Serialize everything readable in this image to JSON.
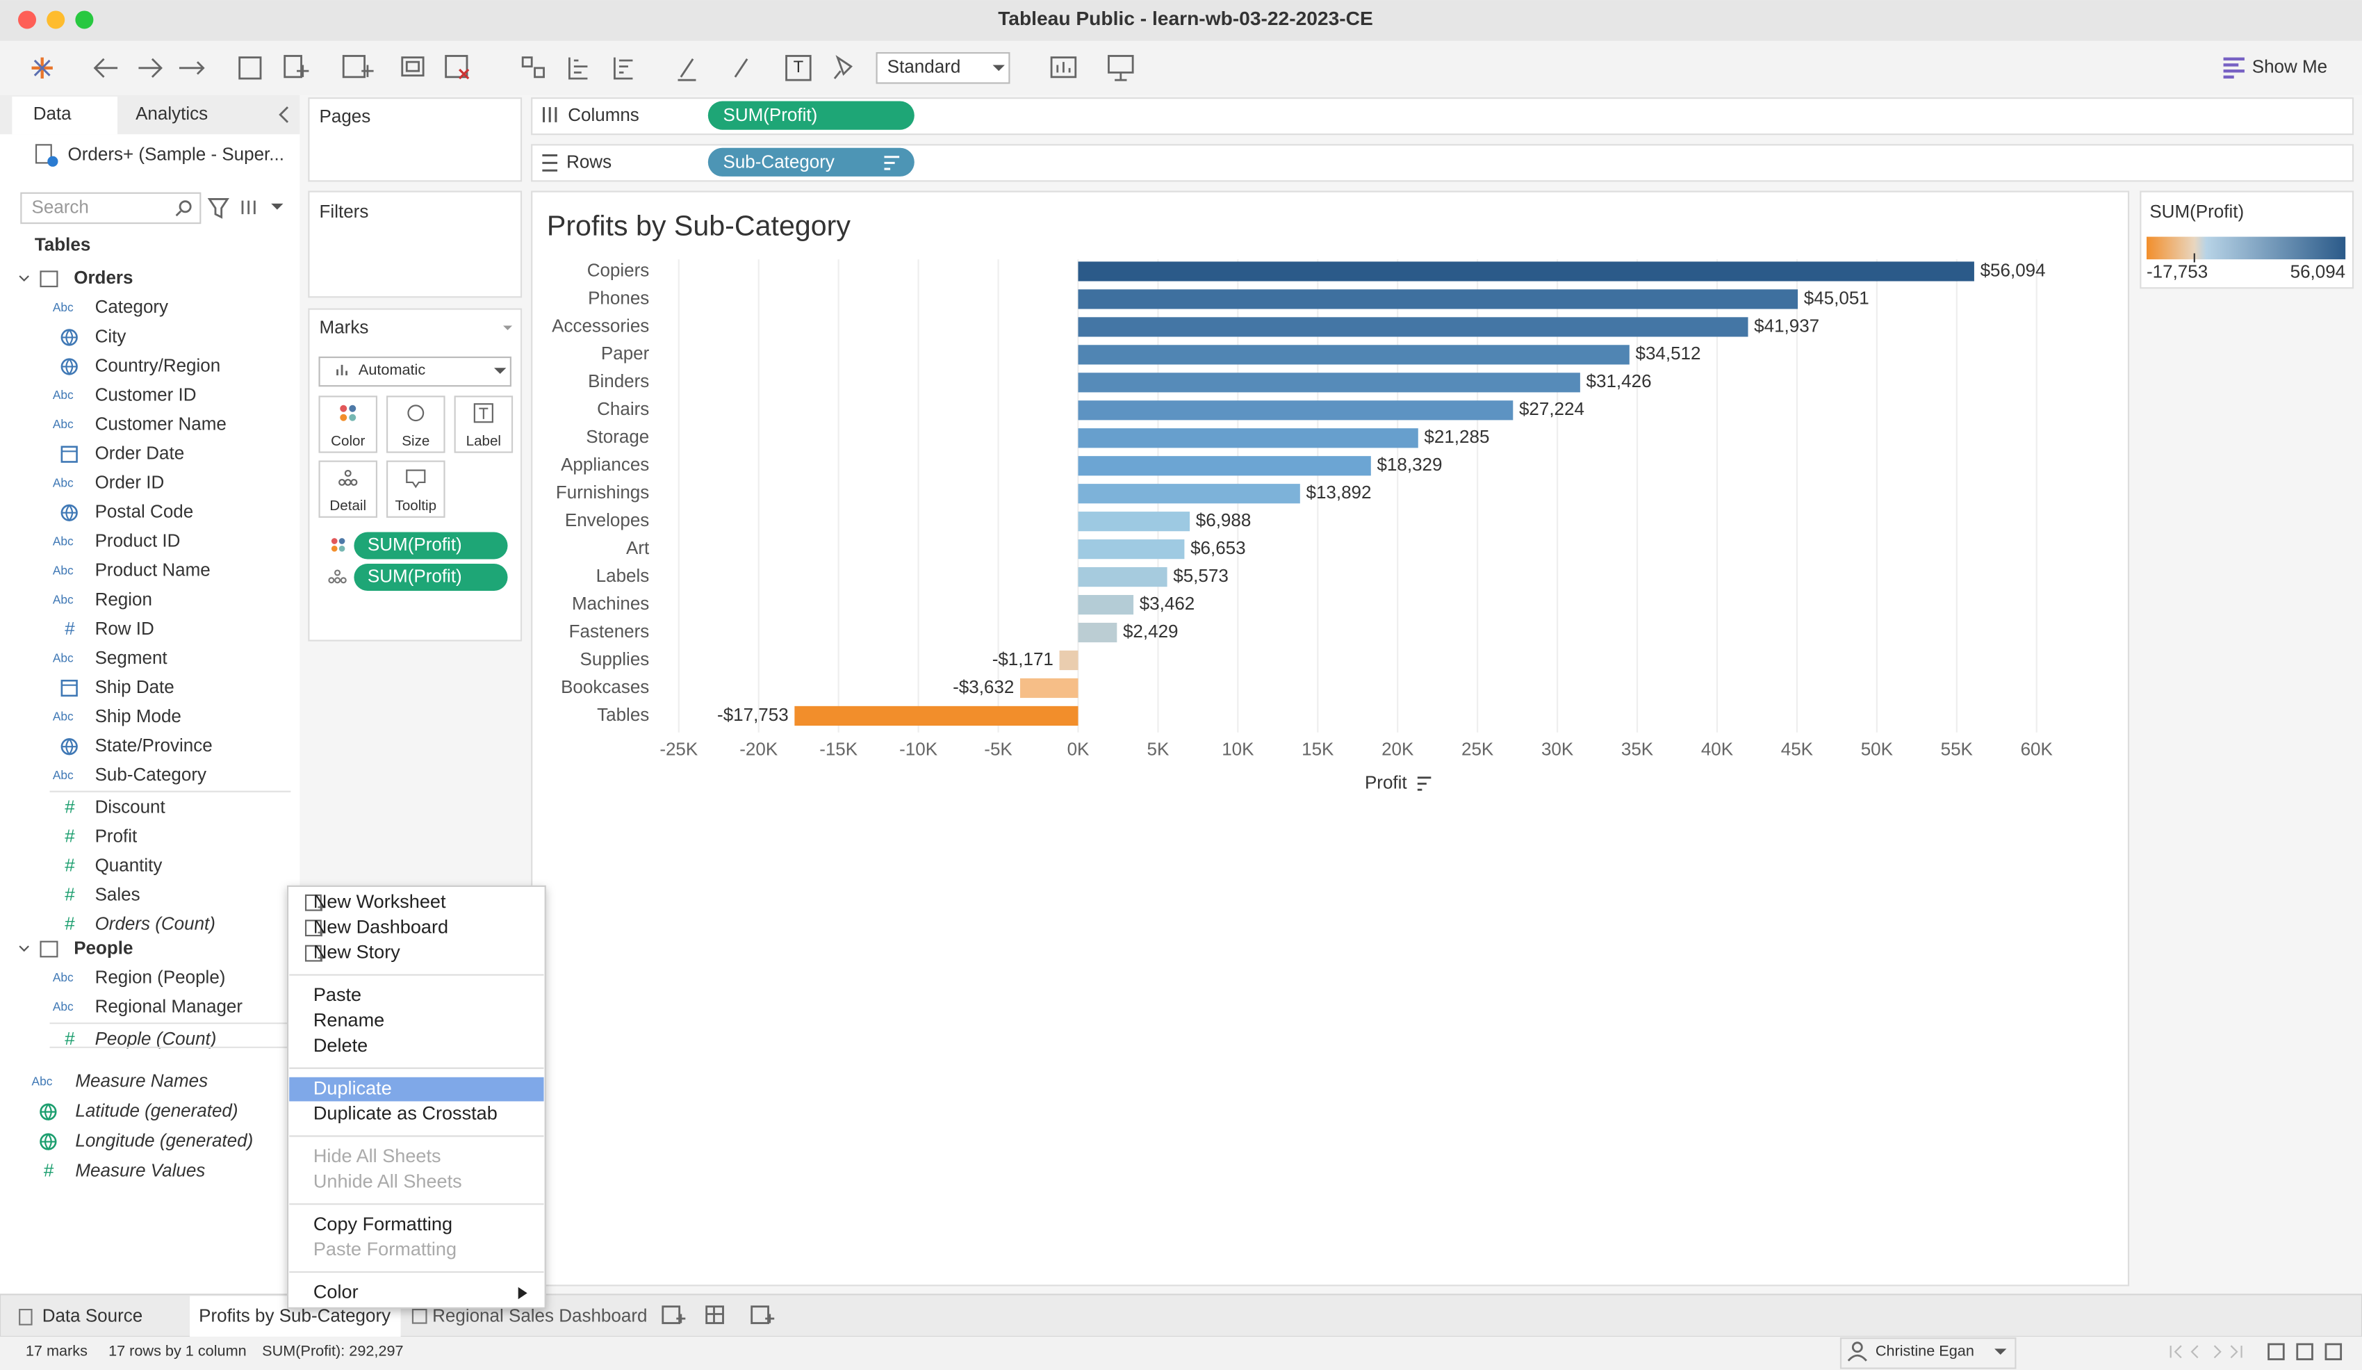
{
  "window": {
    "title": "Tableau Public - learn-wb-03-22-2023-CE"
  },
  "toolbar": {
    "fit": "Standard",
    "show_me": "Show Me"
  },
  "data_pane": {
    "tabs": [
      "Data",
      "Analytics"
    ],
    "source": "Orders+ (Sample - Super...",
    "search_placeholder": "Search",
    "tables_heading": "Tables",
    "tables": [
      {
        "name": "Orders",
        "fields": [
          {
            "name": "Category",
            "icon": "Abc",
            "role": "dimension"
          },
          {
            "name": "City",
            "icon": "globe",
            "role": "dimension"
          },
          {
            "name": "Country/Region",
            "icon": "globe",
            "role": "dimension"
          },
          {
            "name": "Customer ID",
            "icon": "Abc",
            "role": "dimension"
          },
          {
            "name": "Customer Name",
            "icon": "Abc",
            "role": "dimension"
          },
          {
            "name": "Order Date",
            "icon": "date",
            "role": "dimension"
          },
          {
            "name": "Order ID",
            "icon": "Abc",
            "role": "dimension"
          },
          {
            "name": "Postal Code",
            "icon": "globe",
            "role": "dimension"
          },
          {
            "name": "Product ID",
            "icon": "Abc",
            "role": "dimension"
          },
          {
            "name": "Product Name",
            "icon": "Abc",
            "role": "dimension"
          },
          {
            "name": "Region",
            "icon": "Abc",
            "role": "dimension"
          },
          {
            "name": "Row ID",
            "icon": "#",
            "role": "dimension"
          },
          {
            "name": "Segment",
            "icon": "Abc",
            "role": "dimension"
          },
          {
            "name": "Ship Date",
            "icon": "date",
            "role": "dimension"
          },
          {
            "name": "Ship Mode",
            "icon": "Abc",
            "role": "dimension"
          },
          {
            "name": "State/Province",
            "icon": "globe",
            "role": "dimension"
          },
          {
            "name": "Sub-Category",
            "icon": "Abc",
            "role": "dimension"
          },
          {
            "name": "Discount",
            "icon": "#",
            "role": "measure"
          },
          {
            "name": "Profit",
            "icon": "#",
            "role": "measure"
          },
          {
            "name": "Quantity",
            "icon": "#",
            "role": "measure"
          },
          {
            "name": "Sales",
            "icon": "#",
            "role": "measure"
          },
          {
            "name": "Orders (Count)",
            "icon": "#",
            "role": "measure",
            "italic": true
          }
        ]
      },
      {
        "name": "People",
        "fields": [
          {
            "name": "Region (People)",
            "icon": "Abc",
            "role": "dimension"
          },
          {
            "name": "Regional Manager",
            "icon": "Abc",
            "role": "dimension"
          },
          {
            "name": "People (Count)",
            "icon": "#",
            "role": "measure",
            "italic": true
          }
        ]
      }
    ],
    "extra_fields": [
      {
        "name": "Measure Names",
        "icon": "Abc",
        "role": "dimension",
        "italic": true
      },
      {
        "name": "Latitude (generated)",
        "icon": "globe",
        "role": "measure",
        "italic": true
      },
      {
        "name": "Longitude (generated)",
        "icon": "globe",
        "role": "measure",
        "italic": true
      },
      {
        "name": "Measure Values",
        "icon": "#",
        "role": "measure",
        "italic": true
      }
    ]
  },
  "shelves": {
    "pages": "Pages",
    "filters": "Filters",
    "columns": {
      "label": "Columns",
      "pills": [
        "SUM(Profit)"
      ]
    },
    "rows": {
      "label": "Rows",
      "pills": [
        "Sub-Category"
      ]
    }
  },
  "marks": {
    "title": "Marks",
    "type": "Automatic",
    "buttons": [
      "Color",
      "Size",
      "Label",
      "Detail",
      "Tooltip"
    ],
    "pills": [
      "SUM(Profit)",
      "SUM(Profit)"
    ]
  },
  "chart_data": {
    "type": "bar",
    "orientation": "horizontal",
    "title": "Profits by Sub-Category",
    "categories": [
      "Copiers",
      "Phones",
      "Accessories",
      "Paper",
      "Binders",
      "Chairs",
      "Storage",
      "Appliances",
      "Furnishings",
      "Envelopes",
      "Art",
      "Labels",
      "Machines",
      "Fasteners",
      "Supplies",
      "Bookcases",
      "Tables"
    ],
    "values": [
      56094,
      45051,
      41937,
      34512,
      31426,
      27224,
      21285,
      18329,
      13892,
      6988,
      6653,
      5573,
      3462,
      2429,
      -1171,
      -3632,
      -17753
    ],
    "value_labels": [
      "$56,094",
      "$45,051",
      "$41,937",
      "$34,512",
      "$31,426",
      "$27,224",
      "$21,285",
      "$18,329",
      "$13,892",
      "$6,988",
      "$6,653",
      "$5,573",
      "$3,462",
      "$2,429",
      "-$1,171",
      "-$3,632",
      "-$17,753"
    ],
    "xlim": [
      -26000,
      65000
    ],
    "xticks": [
      {
        "value": -25000,
        "label": "-25K"
      },
      {
        "value": -20000,
        "label": "-20K"
      },
      {
        "value": -15000,
        "label": "-15K"
      },
      {
        "value": -10000,
        "label": "-10K"
      },
      {
        "value": -5000,
        "label": "-5K"
      },
      {
        "value": 0,
        "label": "0K"
      },
      {
        "value": 5000,
        "label": "5K"
      },
      {
        "value": 10000,
        "label": "10K"
      },
      {
        "value": 15000,
        "label": "15K"
      },
      {
        "value": 20000,
        "label": "20K"
      },
      {
        "value": 25000,
        "label": "25K"
      },
      {
        "value": 30000,
        "label": "30K"
      },
      {
        "value": 35000,
        "label": "35K"
      },
      {
        "value": 40000,
        "label": "40K"
      },
      {
        "value": 45000,
        "label": "45K"
      },
      {
        "value": 50000,
        "label": "50K"
      },
      {
        "value": 55000,
        "label": "55K"
      },
      {
        "value": 60000,
        "label": "60K"
      }
    ],
    "x_label": "Profit",
    "grid": true
  },
  "legend": {
    "title": "SUM(Profit)",
    "min": {
      "value": -17753,
      "label": "-17,753"
    },
    "max": {
      "value": 56094,
      "label": "56,094"
    }
  },
  "context_menu": {
    "groups": [
      [
        {
          "label": "New Worksheet"
        },
        {
          "label": "New Dashboard"
        },
        {
          "label": "New Story"
        }
      ],
      [
        {
          "label": "Paste"
        },
        {
          "label": "Rename"
        },
        {
          "label": "Delete"
        }
      ],
      [
        {
          "label": "Duplicate",
          "highlighted": true
        },
        {
          "label": "Duplicate as Crosstab"
        }
      ],
      [
        {
          "label": "Hide All Sheets",
          "disabled": true
        },
        {
          "label": "Unhide All Sheets",
          "disabled": true
        }
      ],
      [
        {
          "label": "Copy Formatting"
        },
        {
          "label": "Paste Formatting",
          "disabled": true
        }
      ],
      [
        {
          "label": "Color",
          "submenu": true
        }
      ]
    ]
  },
  "sheet_tabs": [
    "Data Source",
    "Profits by Sub-Category",
    "Regional Sales Dashboard"
  ],
  "status": [
    "17 marks",
    "17 rows by 1 column",
    "SUM(Profit): 292,297"
  ],
  "user": "Christine Egan"
}
